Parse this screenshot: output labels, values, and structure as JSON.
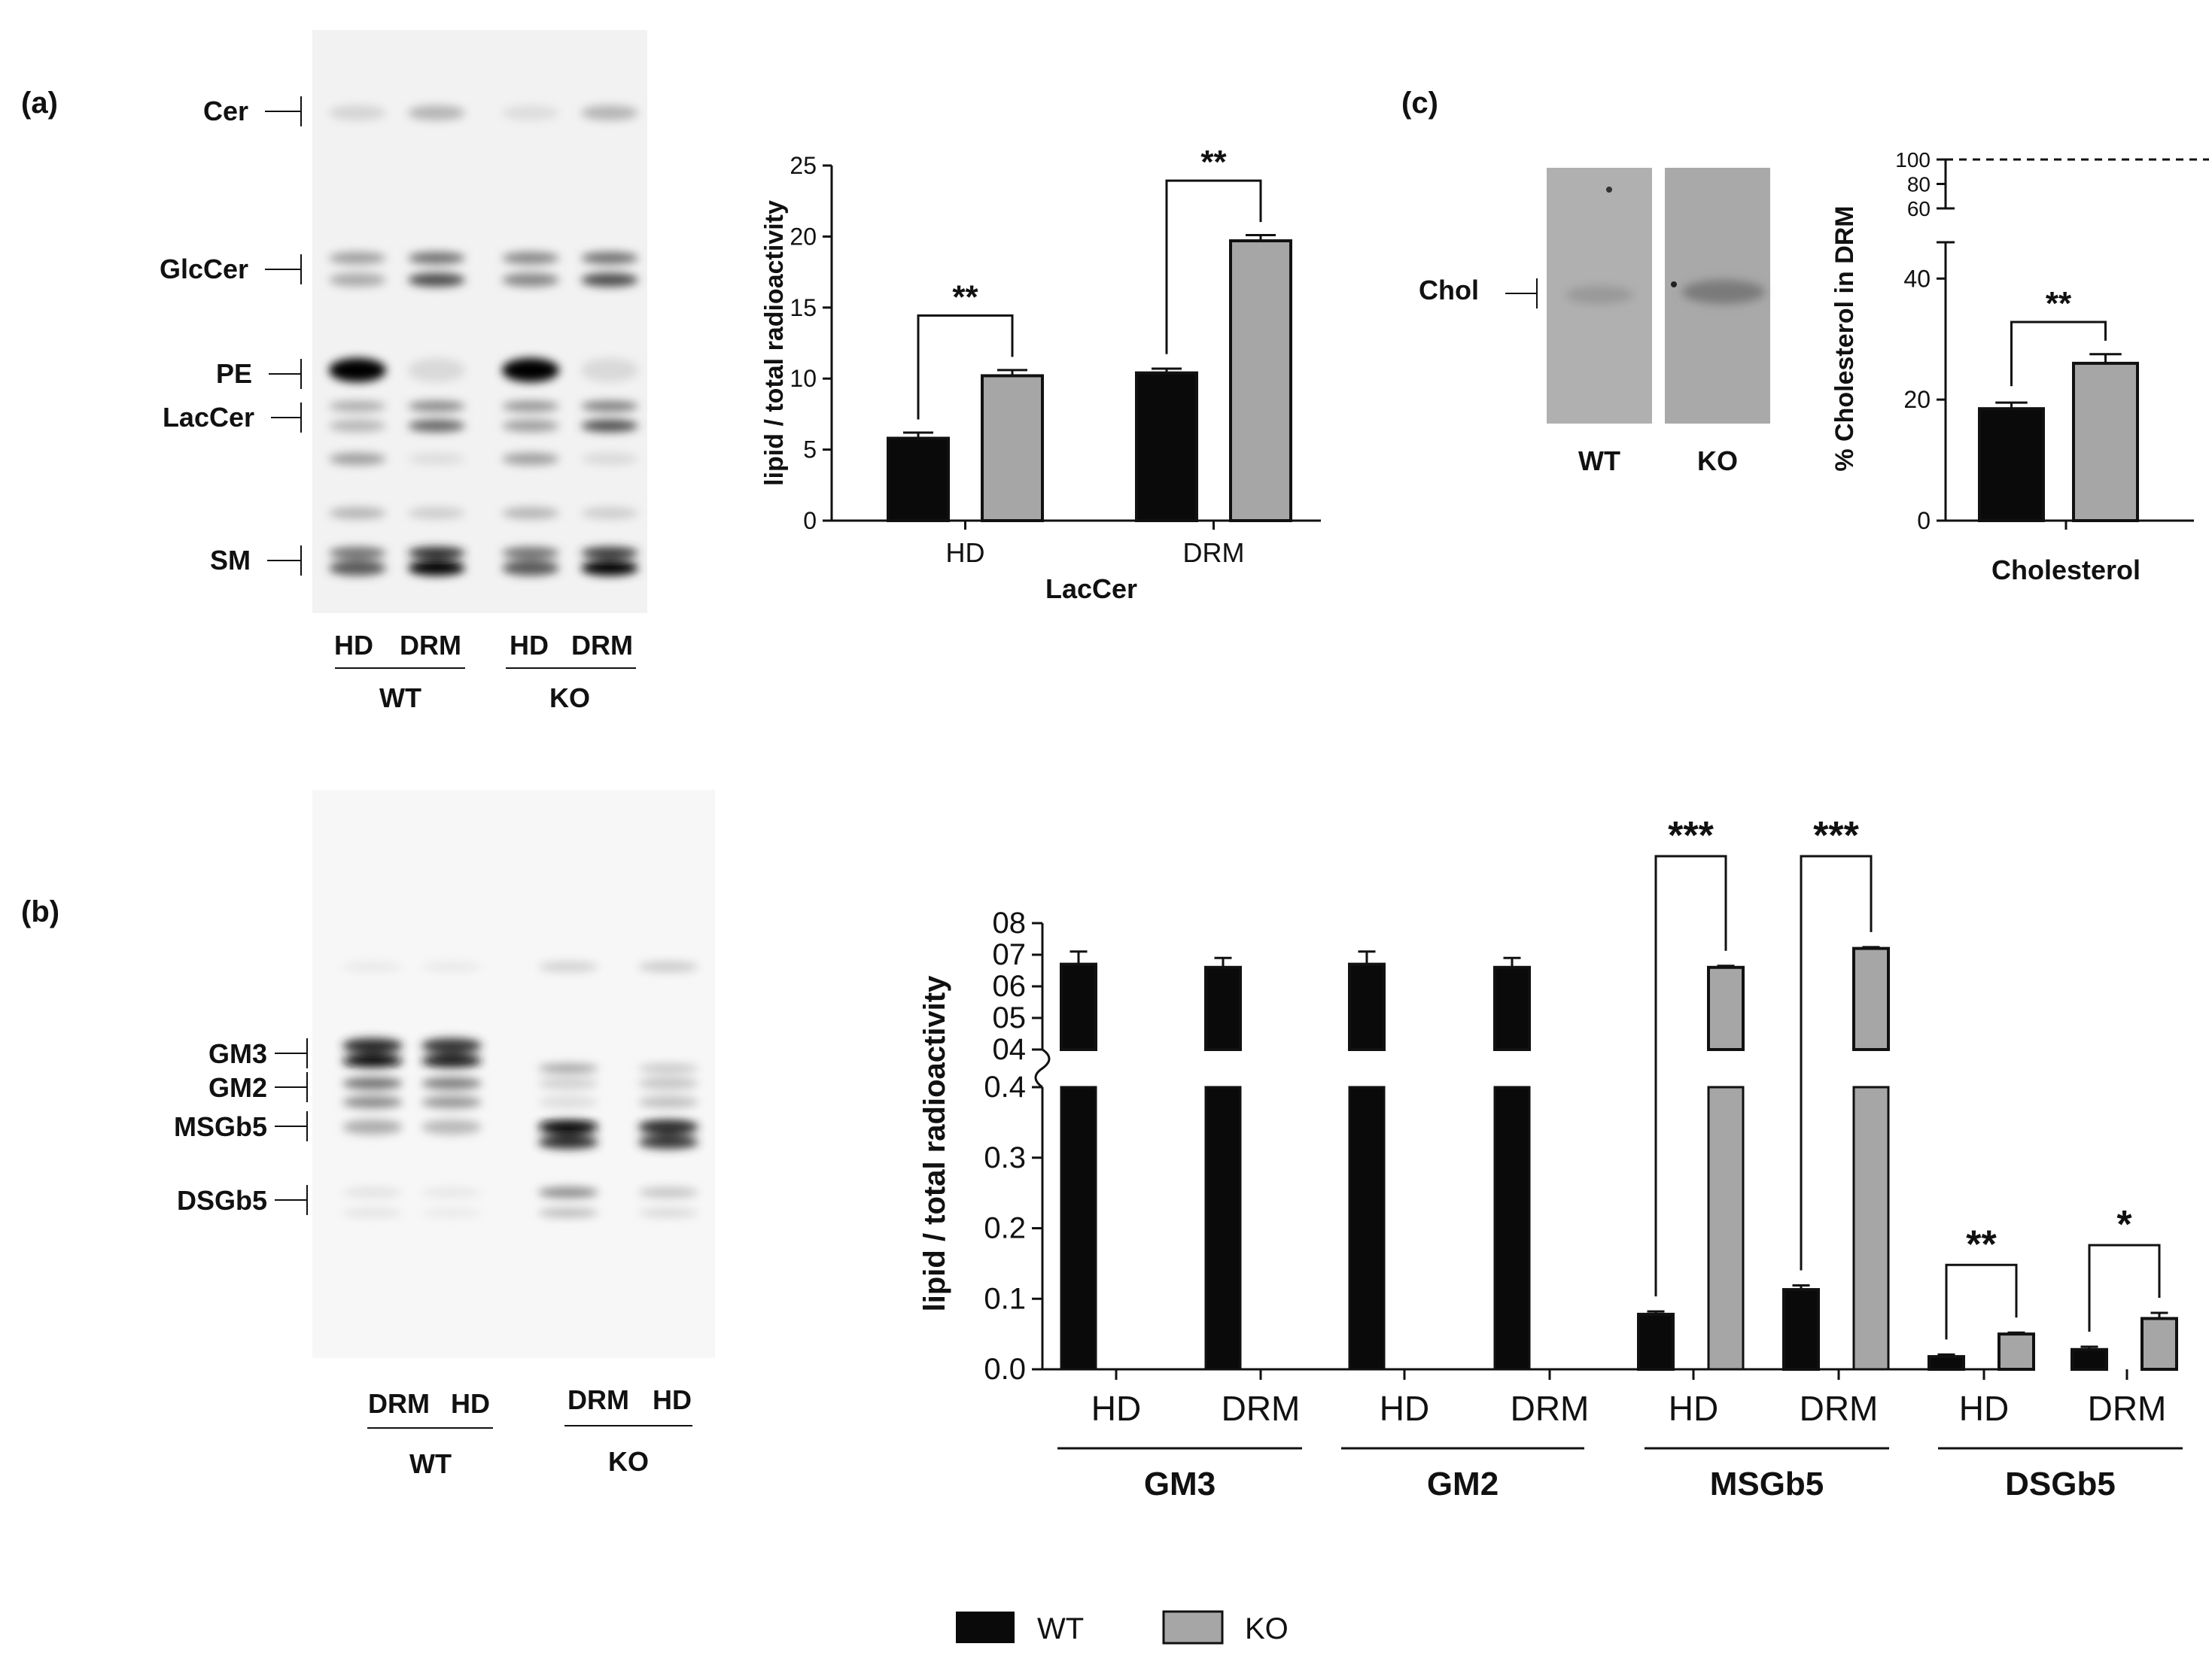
{
  "panels": {
    "a": "(a)",
    "b": "(b)",
    "c": "(c)"
  },
  "blot_a": {
    "bands": [
      "Cer",
      "GlcCer",
      "PE",
      "LacCer",
      "SM"
    ],
    "lanes": [
      "HD",
      "DRM",
      "HD",
      "DRM"
    ],
    "groups": [
      "WT",
      "KO"
    ]
  },
  "blot_b": {
    "bands": [
      "GM3",
      "GM2",
      "MSGb5",
      "DSGb5"
    ],
    "lanes": [
      "DRM",
      "HD",
      "DRM",
      "HD"
    ],
    "groups": [
      "WT",
      "KO"
    ]
  },
  "blot_c": {
    "band": "Chol",
    "lanes": [
      "WT",
      "KO"
    ]
  },
  "legend": {
    "wt": "WT",
    "ko": "KO"
  },
  "colors": {
    "wt": "#0a0a0a",
    "ko": "#a6a6a6"
  },
  "chart_data": [
    {
      "id": "lacer",
      "type": "bar",
      "xlabel": "LacCer",
      "ylabel": "lipid / total radioactivity",
      "categories": [
        "HD",
        "DRM"
      ],
      "ylim": [
        0,
        25
      ],
      "yticks": [
        "0",
        "5",
        "10",
        "15",
        "20",
        "25"
      ],
      "series": [
        {
          "name": "WT",
          "values": [
            5.8,
            10.4
          ],
          "errors": [
            0.4,
            0.3
          ]
        },
        {
          "name": "KO",
          "values": [
            10.2,
            19.7
          ],
          "errors": [
            0.4,
            0.4
          ]
        }
      ],
      "significance": [
        "**",
        "**"
      ]
    },
    {
      "id": "chol",
      "type": "bar",
      "xlabel": "Cholesterol",
      "ylabel": "% Cholesterol in DRM",
      "categories": [
        "Cholesterol"
      ],
      "ylim": [
        0,
        100
      ],
      "yticks_lower": [
        "0",
        "20",
        "40"
      ],
      "yticks_upper": [
        "60",
        "80",
        "100"
      ],
      "series": [
        {
          "name": "WT",
          "values": [
            18.5
          ],
          "errors": [
            1.0
          ]
        },
        {
          "name": "KO",
          "values": [
            26.0
          ],
          "errors": [
            1.5
          ]
        }
      ],
      "reference_line": 100,
      "significance": [
        "**"
      ]
    },
    {
      "id": "gangliosides",
      "type": "bar",
      "ylabel": "lipid / total radioactivity",
      "categories": [
        "HD",
        "DRM",
        "HD",
        "DRM",
        "HD",
        "DRM",
        "HD",
        "DRM"
      ],
      "groups": [
        "GM3",
        "GM2",
        "MSGb5",
        "DSGb5"
      ],
      "ylim_lower": [
        0,
        0.4
      ],
      "ylim_upper": [
        0.4,
        0.8
      ],
      "yticks_lower": [
        "0.0",
        "0.1",
        "0.2",
        "0.3",
        "0.4"
      ],
      "yticks_upper": [
        "04",
        "05",
        "06",
        "07",
        "08"
      ],
      "series": [
        {
          "name": "WT",
          "values": [
            0.67,
            0.66,
            0.67,
            0.66,
            0.078,
            0.113,
            0.018,
            0.028
          ],
          "errors": [
            0.04,
            0.03,
            0.04,
            0.03,
            0.004,
            0.006,
            0.003,
            0.004
          ]
        },
        {
          "name": "KO",
          "values": [
            null,
            null,
            null,
            null,
            0.66,
            0.72,
            0.05,
            0.072
          ],
          "errors": [
            null,
            null,
            null,
            null,
            0.005,
            0.004,
            0.002,
            0.008
          ]
        }
      ],
      "significance": [
        "",
        "",
        "",
        "",
        "***",
        "***",
        "**",
        "*"
      ]
    }
  ]
}
